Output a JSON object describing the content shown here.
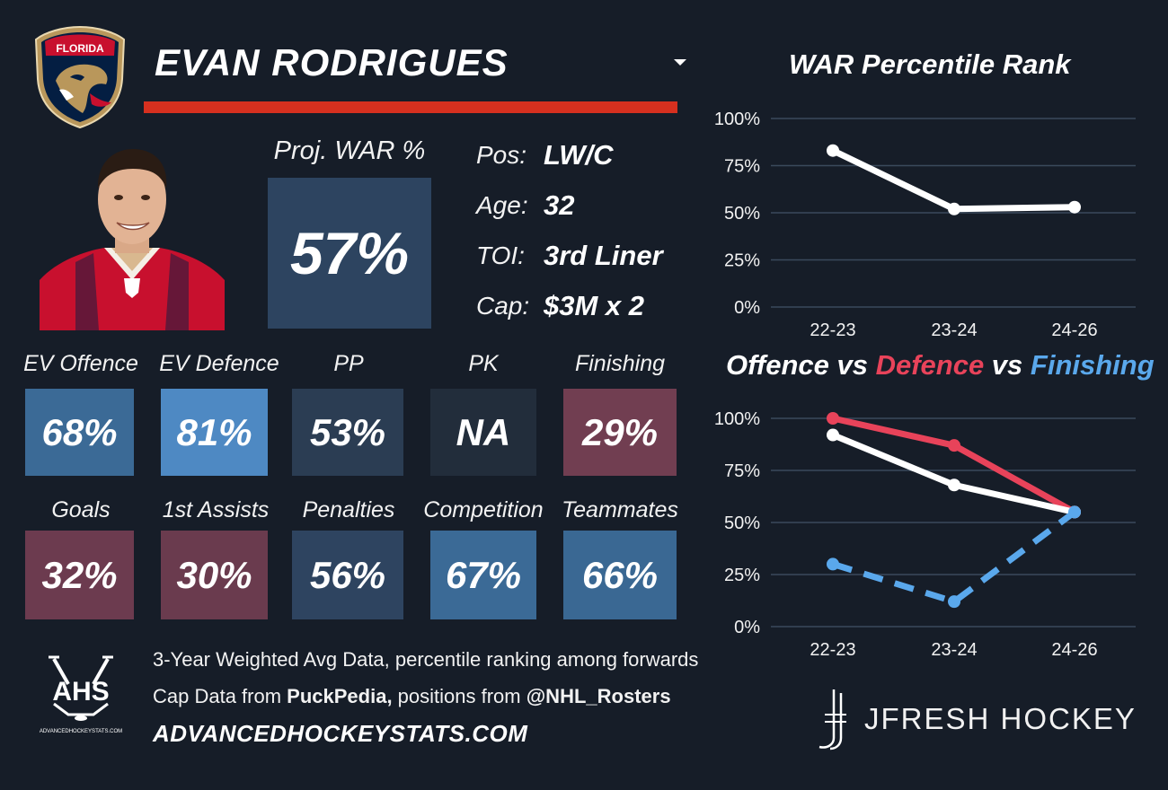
{
  "header": {
    "team_logo_text": "FLORIDA",
    "player_name": "EVAN RODRIGUES"
  },
  "proj_war": {
    "label": "Proj. WAR %",
    "value": "57%"
  },
  "info": [
    {
      "key": "Pos:",
      "value": "LW/C"
    },
    {
      "key": "Age:",
      "value": "32"
    },
    {
      "key": "TOI:",
      "value": "3rd Liner"
    },
    {
      "key": "Cap:",
      "value": "$3M x 2"
    }
  ],
  "stats_row1": [
    {
      "label": "EV Offence",
      "value": "68%",
      "color": "#3b6a96"
    },
    {
      "label": "EV Defence",
      "value": "81%",
      "color": "#4e89c3"
    },
    {
      "label": "PP",
      "value": "53%",
      "color": "#2b3d53"
    },
    {
      "label": "PK",
      "value": "NA",
      "color": "#222d3b"
    },
    {
      "label": "Finishing",
      "value": "29%",
      "color": "#713e51"
    }
  ],
  "stats_row2": [
    {
      "label": "Goals",
      "value": "32%",
      "color": "#6c3b4f"
    },
    {
      "label": "1st Assists",
      "value": "30%",
      "color": "#6a3b4e"
    },
    {
      "label": "Penalties",
      "value": "56%",
      "color": "#2e4460"
    },
    {
      "label": "Competition",
      "value": "67%",
      "color": "#3b6a96"
    },
    {
      "label": "Teammates",
      "value": "66%",
      "color": "#3a6893"
    }
  ],
  "footer": {
    "line1": "3-Year Weighted Avg Data, percentile ranking among forwards",
    "line2_prefix": "Cap Data from ",
    "line2_bold1": "PuckPedia,",
    "line2_mid": " positions from ",
    "line2_bold2": "@NHL_Rosters",
    "url": "ADVANCEDHOCKEYSTATS.COM",
    "ahs_logo_text": "AHS",
    "ahs_logo_small": "ADVANCEDHOCKEYSTATS.COM",
    "brand": "JFRESH HOCKEY"
  },
  "colors": {
    "background": "#161d28",
    "accent_red": "#d6301f",
    "offence_line": "#ffffff",
    "defence_line": "#e8435a",
    "finishing_line": "#5aa8ec",
    "gridline": "#3a4a5c"
  },
  "chart_data": [
    {
      "type": "line",
      "title": "WAR Percentile Rank",
      "categories": [
        "22-23",
        "23-24",
        "24-26"
      ],
      "series": [
        {
          "name": "WAR Percentile",
          "values": [
            83,
            52,
            53
          ],
          "color": "#ffffff"
        }
      ],
      "ylim": [
        0,
        100
      ],
      "yticks": [
        "0%",
        "25%",
        "50%",
        "75%",
        "100%"
      ],
      "grid": true
    },
    {
      "type": "line",
      "title_parts": [
        {
          "text": "Offence",
          "color": "#ffffff"
        },
        {
          "text": " vs ",
          "color": "#ffffff"
        },
        {
          "text": "Defence",
          "color": "#e8435a"
        },
        {
          "text": " vs ",
          "color": "#ffffff"
        },
        {
          "text": "Finishing",
          "color": "#5aa8ec"
        }
      ],
      "categories": [
        "22-23",
        "23-24",
        "24-26"
      ],
      "series": [
        {
          "name": "Defence",
          "values": [
            100,
            87,
            55
          ],
          "color": "#e8435a",
          "dash": false
        },
        {
          "name": "Offence",
          "values": [
            92,
            68,
            55
          ],
          "color": "#ffffff",
          "dash": false
        },
        {
          "name": "Finishing",
          "values": [
            30,
            12,
            55
          ],
          "color": "#5aa8ec",
          "dash": true
        }
      ],
      "ylim": [
        0,
        100
      ],
      "yticks": [
        "0%",
        "25%",
        "50%",
        "75%",
        "100%"
      ],
      "grid": true
    }
  ]
}
